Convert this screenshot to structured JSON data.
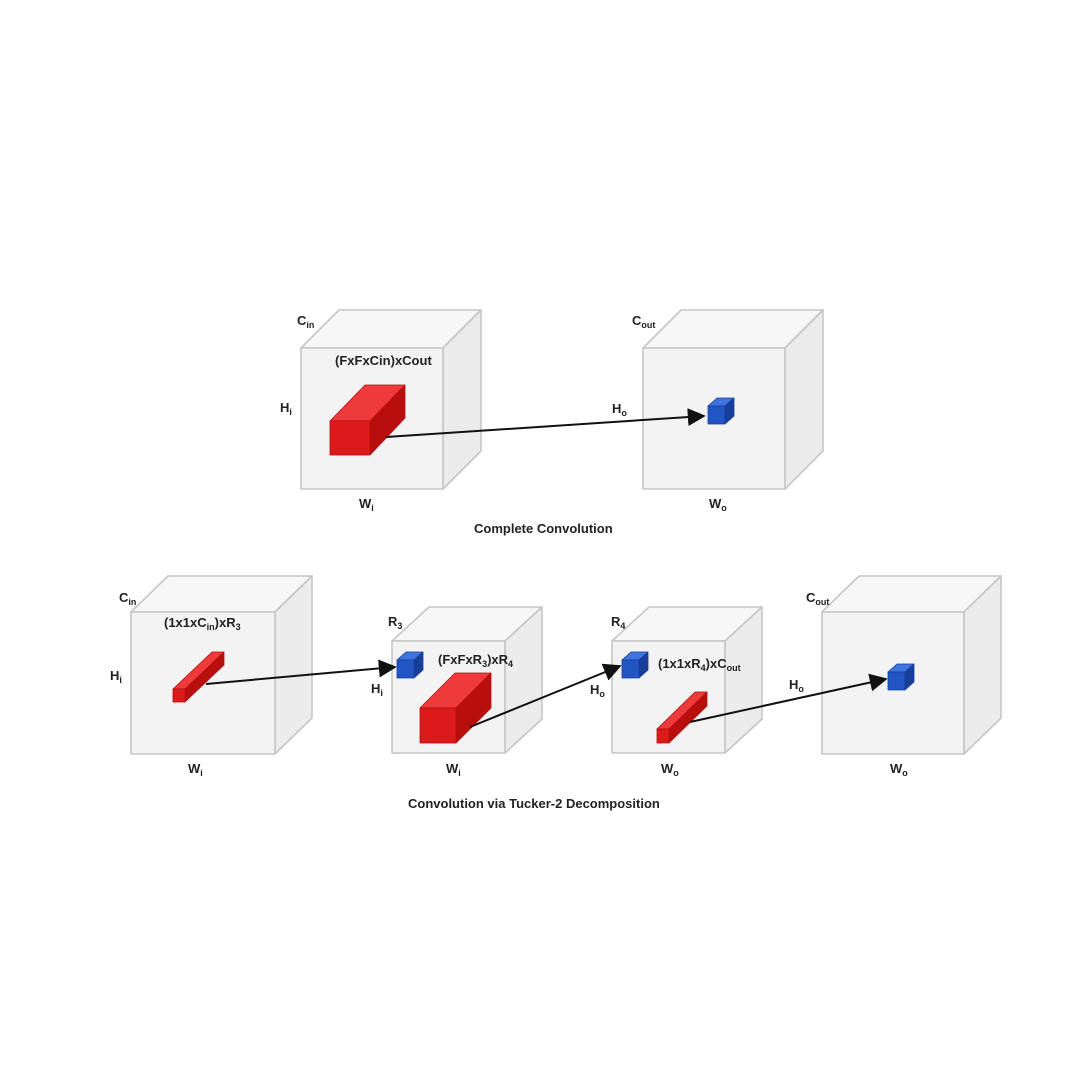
{
  "colors": {
    "box_front": "#f3f3f3",
    "box_top": "#f7f7f7",
    "box_side": "#ececec",
    "box_stroke": "#c6c6c6",
    "kernel_red": "#dd1a1a",
    "kernel_red_top": "#ee3a3a",
    "kernel_red_side": "#b80e0e",
    "kernel_blue": "#2255c4",
    "kernel_blue_top": "#3f73dd",
    "kernel_blue_side": "#173e98",
    "arrow": "#111111"
  },
  "complete": {
    "caption": "Complete Convolution",
    "input": {
      "depth": "C",
      "depth_sub": "in",
      "height": "H",
      "height_sub": "i",
      "width": "W",
      "width_sub": "i"
    },
    "kernel": "(FxFxCin)xCout",
    "output": {
      "depth": "C",
      "depth_sub": "out",
      "height": "H",
      "height_sub": "o",
      "width": "W",
      "width_sub": "o"
    },
    "icons": [
      "red-cuboid-icon",
      "blue-cube-icon",
      "arrow-icon"
    ]
  },
  "tucker": {
    "caption": "Convolution via Tucker-2 Decomposition",
    "stage1": {
      "depth": "C",
      "depth_sub": "in",
      "height": "H",
      "height_sub": "i",
      "width": "W",
      "width_sub": "i",
      "kernel_a": "(1x1xC",
      "kernel_sub": "in",
      "kernel_b": ")xR",
      "kernel_sub2": "3"
    },
    "stage2": {
      "depth": "R",
      "depth_sub": "3",
      "height": "H",
      "height_sub": "i",
      "width": "W",
      "width_sub": "i",
      "kernel_a": "(FxFxR",
      "kernel_sub": "3",
      "kernel_b": ")xR",
      "kernel_sub2": "4"
    },
    "stage3": {
      "depth": "R",
      "depth_sub": "4",
      "height": "H",
      "height_sub": "o",
      "width": "W",
      "width_sub": "o",
      "kernel_a": "(1x1xR",
      "kernel_sub": "4",
      "kernel_b": ")xC",
      "kernel_sub2": "out"
    },
    "stage4": {
      "depth": "C",
      "depth_sub": "out",
      "height": "H",
      "height_sub": "o",
      "width": "W",
      "width_sub": "o"
    }
  }
}
